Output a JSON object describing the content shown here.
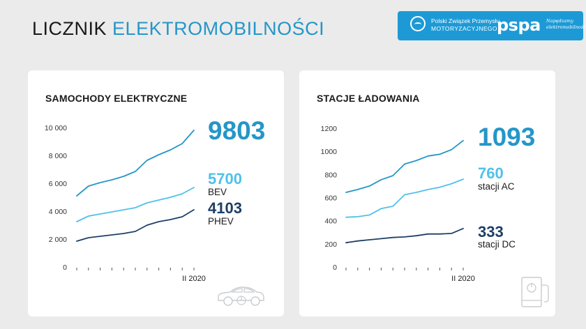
{
  "header": {
    "title_part1": "LICZNIK",
    "title_part2": "ELEKTROMOBILNOŚCI"
  },
  "logos": {
    "pzpm_line1": "Polski Związek Przemysłu",
    "pzpm_line2": "MOTORYZACYJNEGO",
    "pspa": "pspa",
    "pspa_tagline_1": "Napędzamy",
    "pspa_tagline_2": "elektromobilność!"
  },
  "colors": {
    "total": "#2596c8",
    "light": "#4fc1e9",
    "dark": "#1e3f66",
    "logo_bg": "#1d9ad6"
  },
  "icons": {
    "left_card": "electric-car-icon",
    "right_card": "charging-station-icon"
  },
  "chart_data": [
    {
      "type": "line",
      "title": "SAMOCHODY ELEKTRYCZNE",
      "ylim": [
        0,
        10000
      ],
      "yticks": [
        0,
        2000,
        4000,
        6000,
        8000,
        10000
      ],
      "ytick_labels": [
        "0",
        "2 000",
        "4 000",
        "6 000",
        "8 000",
        "10 000"
      ],
      "x_end_label": "II 2020",
      "grid": false,
      "series": [
        {
          "key": "total",
          "values": [
            5100,
            5800,
            6050,
            6250,
            6500,
            6850,
            7650,
            8050,
            8400,
            8850,
            9803
          ]
        },
        {
          "key": "bev",
          "name": "BEV",
          "values": [
            3250,
            3650,
            3800,
            3950,
            4100,
            4250,
            4600,
            4800,
            5000,
            5250,
            5700
          ]
        },
        {
          "key": "phev",
          "name": "PHEV",
          "values": [
            1850,
            2100,
            2200,
            2300,
            2400,
            2550,
            3000,
            3250,
            3400,
            3600,
            4103
          ]
        }
      ],
      "labels": {
        "total_value": "9803",
        "bev_value": "5700",
        "bev_label": "BEV",
        "phev_value": "4103",
        "phev_label": "PHEV"
      }
    },
    {
      "type": "line",
      "title": "STACJE ŁADOWANIA",
      "ylim": [
        0,
        1200
      ],
      "yticks": [
        0,
        200,
        400,
        600,
        800,
        1000,
        1200
      ],
      "ytick_labels": [
        "0",
        "200",
        "400",
        "600",
        "800",
        "1000",
        "1200"
      ],
      "x_end_label": "II 2020",
      "grid": false,
      "series": [
        {
          "key": "total",
          "values": [
            645,
            670,
            700,
            755,
            790,
            890,
            920,
            960,
            975,
            1015,
            1093
          ]
        },
        {
          "key": "ac",
          "name": "stacji AC",
          "values": [
            430,
            435,
            450,
            505,
            525,
            625,
            645,
            670,
            690,
            720,
            760
          ]
        },
        {
          "key": "dc",
          "name": "stacji DC",
          "values": [
            210,
            225,
            235,
            245,
            255,
            260,
            270,
            285,
            285,
            290,
            333
          ]
        }
      ],
      "labels": {
        "total_value": "1093",
        "ac_value": "760",
        "ac_label": "stacji AC",
        "dc_value": "333",
        "dc_label": "stacji DC"
      }
    }
  ]
}
